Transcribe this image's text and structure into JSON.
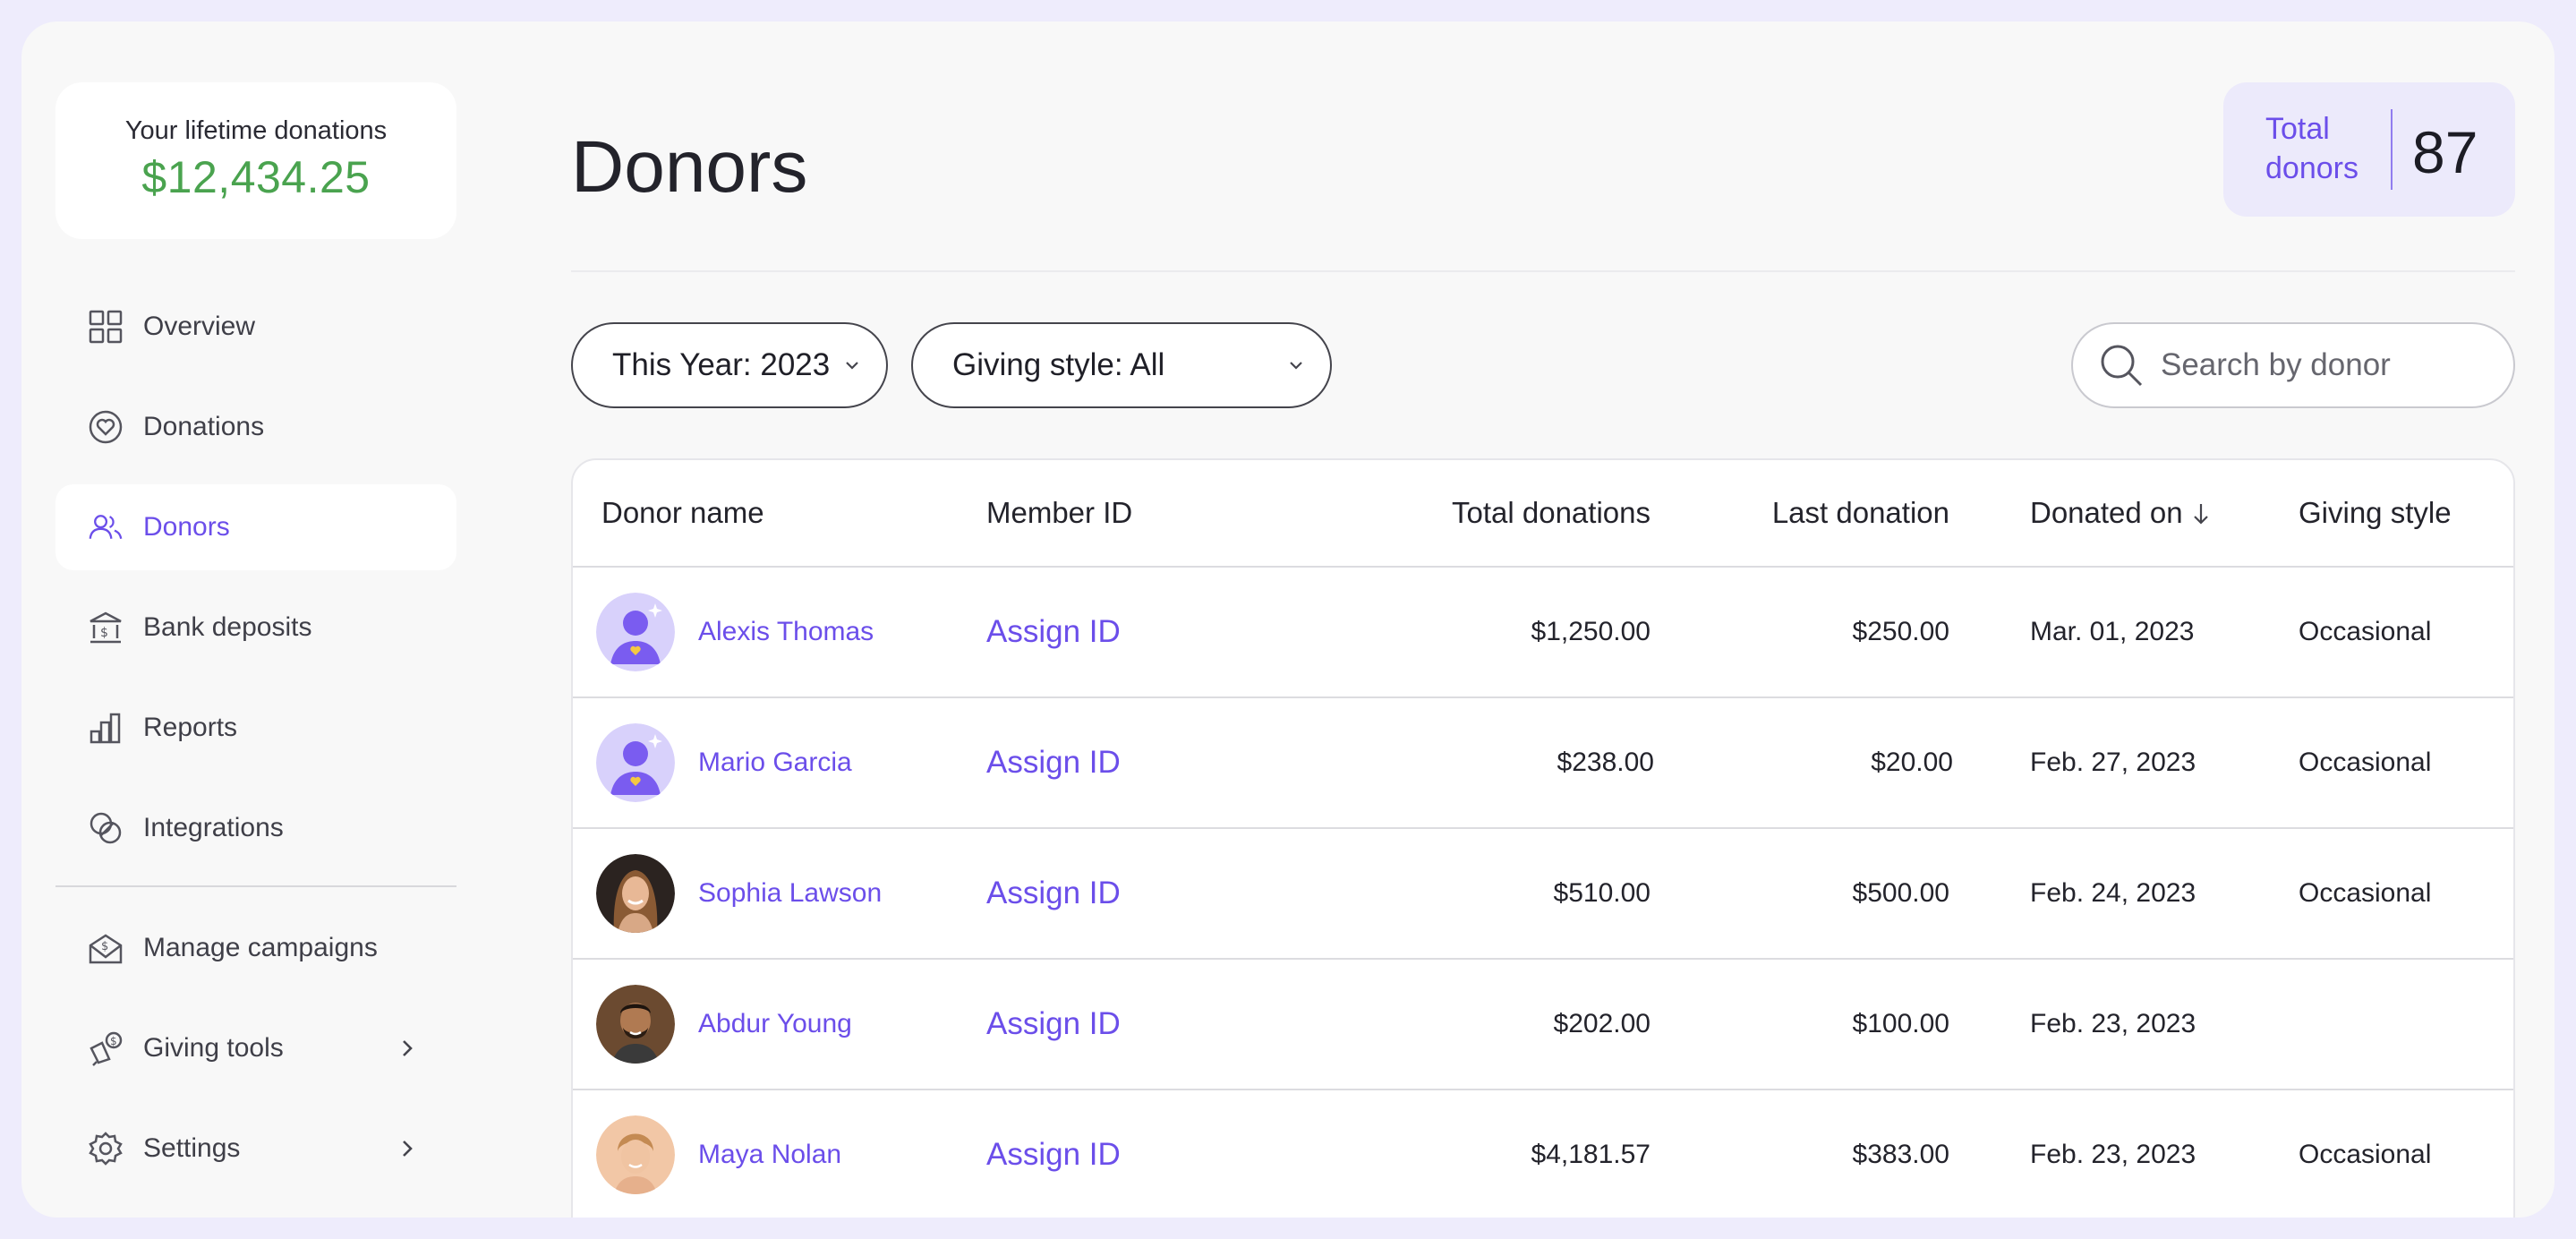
{
  "sidebar": {
    "lifetime_label": "Your lifetime donations",
    "lifetime_value": "$12,434.25",
    "items": [
      {
        "label": "Overview",
        "icon": "grid-icon"
      },
      {
        "label": "Donations",
        "icon": "heart-circle-icon"
      },
      {
        "label": "Donors",
        "icon": "users-icon",
        "active": true
      },
      {
        "label": "Bank deposits",
        "icon": "bank-icon"
      },
      {
        "label": "Reports",
        "icon": "bar-chart-icon"
      },
      {
        "label": "Integrations",
        "icon": "integrations-icon"
      },
      {
        "label": "Manage campaigns",
        "icon": "envelope-dollar-icon"
      },
      {
        "label": "Giving tools",
        "icon": "megaphone-dollar-icon"
      },
      {
        "label": "Settings",
        "icon": "gear-icon"
      }
    ]
  },
  "header": {
    "title": "Donors",
    "total_label": "Total donors",
    "total_value": "87"
  },
  "filters": {
    "year": "This Year: 2023",
    "giving_style": "Giving style: All",
    "search_placeholder": "Search by donor"
  },
  "table": {
    "columns": [
      "Donor name",
      "Member ID",
      "Total donations",
      "Last donation",
      "Donated on",
      "Giving style"
    ],
    "sort_column": "Donated on",
    "rows": [
      {
        "name": "Alexis Thomas",
        "member_id": "Assign ID",
        "total": "$1,250.00",
        "last": "$250.00",
        "date": "Mar. 01, 2023",
        "style": "Occasional",
        "avatar": "placeholder-avatar-icon"
      },
      {
        "name": "Mario Garcia",
        "member_id": "Assign ID",
        "total": "$238.00",
        "last": "$20.00",
        "date": "Feb. 27, 2023",
        "style": "Occasional",
        "avatar": "placeholder-avatar-icon"
      },
      {
        "name": "Sophia Lawson",
        "member_id": "Assign ID",
        "total": "$510.00",
        "last": "$500.00",
        "date": "Feb. 24, 2023",
        "style": "Occasional",
        "avatar": "photo-avatar"
      },
      {
        "name": "Abdur Young",
        "member_id": "Assign ID",
        "total": "$202.00",
        "last": "$100.00",
        "date": "Feb. 23, 2023",
        "style": "",
        "avatar": "photo-avatar"
      },
      {
        "name": "Maya Nolan",
        "member_id": "Assign ID",
        "total": "$4,181.57",
        "last": "$383.00",
        "date": "Feb. 23, 2023",
        "style": "Occasional",
        "avatar": "photo-avatar"
      }
    ]
  },
  "colors": {
    "accent": "#6b4eea",
    "money_green": "#4aa34f",
    "frame_bg": "#eeecfc"
  }
}
